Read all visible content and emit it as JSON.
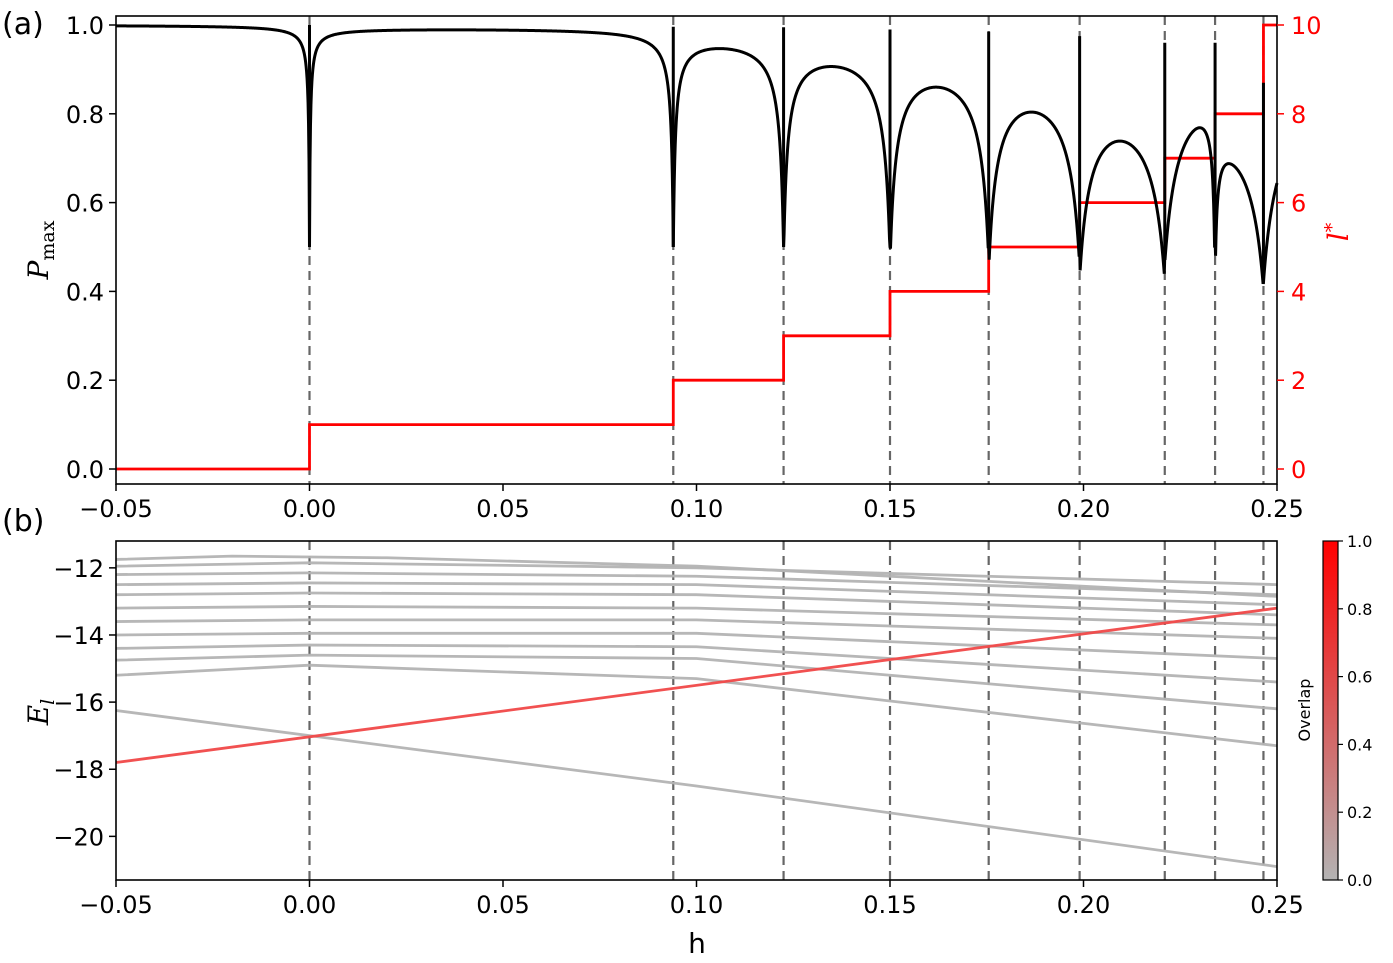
{
  "chart_data": [
    {
      "panel_label": "(a)",
      "type": "line",
      "ylabel_main": "P",
      "ylabel_sub": "max",
      "y2label_main": "l",
      "y2label_sup": "*",
      "xlim": [
        -0.05,
        0.25
      ],
      "ylim": [
        0.0,
        1.0
      ],
      "y2lim": [
        0,
        10
      ],
      "x_ticks": [
        "−0.05",
        "0.00",
        "0.05",
        "0.10",
        "0.15",
        "0.20",
        "0.25"
      ],
      "y_ticks": [
        "0.0",
        "0.2",
        "0.4",
        "0.6",
        "0.8",
        "1.0"
      ],
      "y2_ticks": [
        "0",
        "2",
        "4",
        "6",
        "8",
        "10"
      ],
      "grid": false,
      "colors": {
        "pmax": "#000000",
        "lstar": "#ff0000",
        "vlines": "#666666"
      },
      "vlines": [
        0.0,
        0.094,
        0.1225,
        0.15,
        0.1755,
        0.199,
        0.221,
        0.234,
        0.2465
      ],
      "series": [
        {
          "axis": "left",
          "dips": [
            {
              "x": 0.0,
              "min": 0.5,
              "w": 0.0002,
              "plateau_before": 1.0
            },
            {
              "x": 0.094,
              "min": 0.5,
              "w": 0.0005,
              "plateau_before": 0.996
            },
            {
              "x": 0.1225,
              "min": 0.5,
              "w": 0.001,
              "plateau_before": 0.995
            },
            {
              "x": 0.15,
              "min": 0.5,
              "w": 0.0016,
              "plateau_before": 0.99
            },
            {
              "x": 0.1755,
              "min": 0.5,
              "w": 0.0022,
              "plateau_before": 0.985
            },
            {
              "x": 0.199,
              "min": 0.5,
              "w": 0.003,
              "plateau_before": 0.975
            },
            {
              "x": 0.221,
              "min": 0.48,
              "w": 0.0038,
              "plateau_before": 0.96
            },
            {
              "x": 0.234,
              "min": 0.52,
              "w": 0.0005,
              "plateau_before": 0.96
            },
            {
              "x": 0.2465,
              "min": 0.42,
              "w": 0.004,
              "plateau_before": 0.87
            }
          ]
        },
        {
          "axis": "right",
          "steps_x": [
            -0.05,
            0.0,
            0.094,
            0.1225,
            0.15,
            0.1755,
            0.199,
            0.221,
            0.234,
            0.2465,
            0.25
          ],
          "steps_y": [
            0,
            1,
            2,
            3,
            4,
            5,
            6,
            7,
            8,
            10
          ]
        }
      ]
    },
    {
      "panel_label": "(b)",
      "type": "line",
      "xlabel": "h",
      "ylabel_main": "E",
      "ylabel_sub": "l",
      "xlim": [
        -0.05,
        0.25
      ],
      "ylim": [
        -21.3,
        -11.2
      ],
      "x_ticks": [
        "−0.05",
        "0.00",
        "0.05",
        "0.10",
        "0.15",
        "0.20",
        "0.25"
      ],
      "y_ticks": [
        "−20",
        "−18",
        "−16",
        "−14",
        "−12"
      ],
      "grid": false,
      "colorbar": {
        "label": "Overlap",
        "ticks": [
          "0.0",
          "0.2",
          "0.4",
          "0.6",
          "0.8",
          "1.0"
        ],
        "low": "#b3b3b3",
        "high": "#ff0000"
      },
      "vlines": [
        0.0,
        0.094,
        0.1225,
        0.15,
        0.1755,
        0.199,
        0.221,
        0.234,
        0.2465
      ],
      "series": [
        {
          "x": [
            -0.05,
            0.25
          ],
          "values": [
            -17.8,
            -13.2
          ],
          "color": "#f04848",
          "overlap": 1.0
        },
        {
          "x": [
            -0.05,
            0.0,
            0.1,
            0.25
          ],
          "values": [
            -16.25,
            -17.0,
            -18.5,
            -20.9
          ],
          "color": "#b3b3b3"
        },
        {
          "x": [
            -0.05,
            0.0,
            0.1,
            0.25
          ],
          "values": [
            -15.2,
            -14.9,
            -15.3,
            -17.3
          ],
          "color": "#b3b3b3"
        },
        {
          "x": [
            -0.05,
            0.0,
            0.1,
            0.25
          ],
          "values": [
            -14.75,
            -14.6,
            -14.7,
            -16.2
          ],
          "color": "#b3b3b3"
        },
        {
          "x": [
            -0.05,
            0.0,
            0.1,
            0.25
          ],
          "values": [
            -14.4,
            -14.3,
            -14.35,
            -15.4
          ],
          "color": "#b3b3b3"
        },
        {
          "x": [
            -0.05,
            0.0,
            0.1,
            0.25
          ],
          "values": [
            -14.0,
            -13.95,
            -13.95,
            -14.7
          ],
          "color": "#b3b3b3"
        },
        {
          "x": [
            -0.05,
            0.0,
            0.1,
            0.25
          ],
          "values": [
            -13.6,
            -13.55,
            -13.55,
            -14.1
          ],
          "color": "#b3b3b3"
        },
        {
          "x": [
            -0.05,
            0.0,
            0.1,
            0.25
          ],
          "values": [
            -13.2,
            -13.15,
            -13.2,
            -13.7
          ],
          "color": "#b3b3b3"
        },
        {
          "x": [
            -0.05,
            0.0,
            0.1,
            0.25
          ],
          "values": [
            -12.8,
            -12.75,
            -12.8,
            -13.4
          ],
          "color": "#b3b3b3"
        },
        {
          "x": [
            -0.05,
            0.0,
            0.1,
            0.25
          ],
          "values": [
            -12.5,
            -12.45,
            -12.5,
            -13.1
          ],
          "color": "#b3b3b3"
        },
        {
          "x": [
            -0.05,
            0.0,
            0.1,
            0.25
          ],
          "values": [
            -12.2,
            -12.15,
            -12.25,
            -12.8
          ],
          "color": "#b3b3b3"
        },
        {
          "x": [
            -0.05,
            0.0,
            0.1,
            0.25
          ],
          "values": [
            -11.95,
            -11.85,
            -12.0,
            -12.5
          ],
          "color": "#b3b3b3"
        },
        {
          "x": [
            -0.05,
            -0.02,
            0.02,
            0.1,
            0.25
          ],
          "values": [
            -11.75,
            -11.65,
            -11.7,
            -11.95,
            -12.85
          ],
          "color": "#b3b3b3"
        }
      ]
    }
  ]
}
